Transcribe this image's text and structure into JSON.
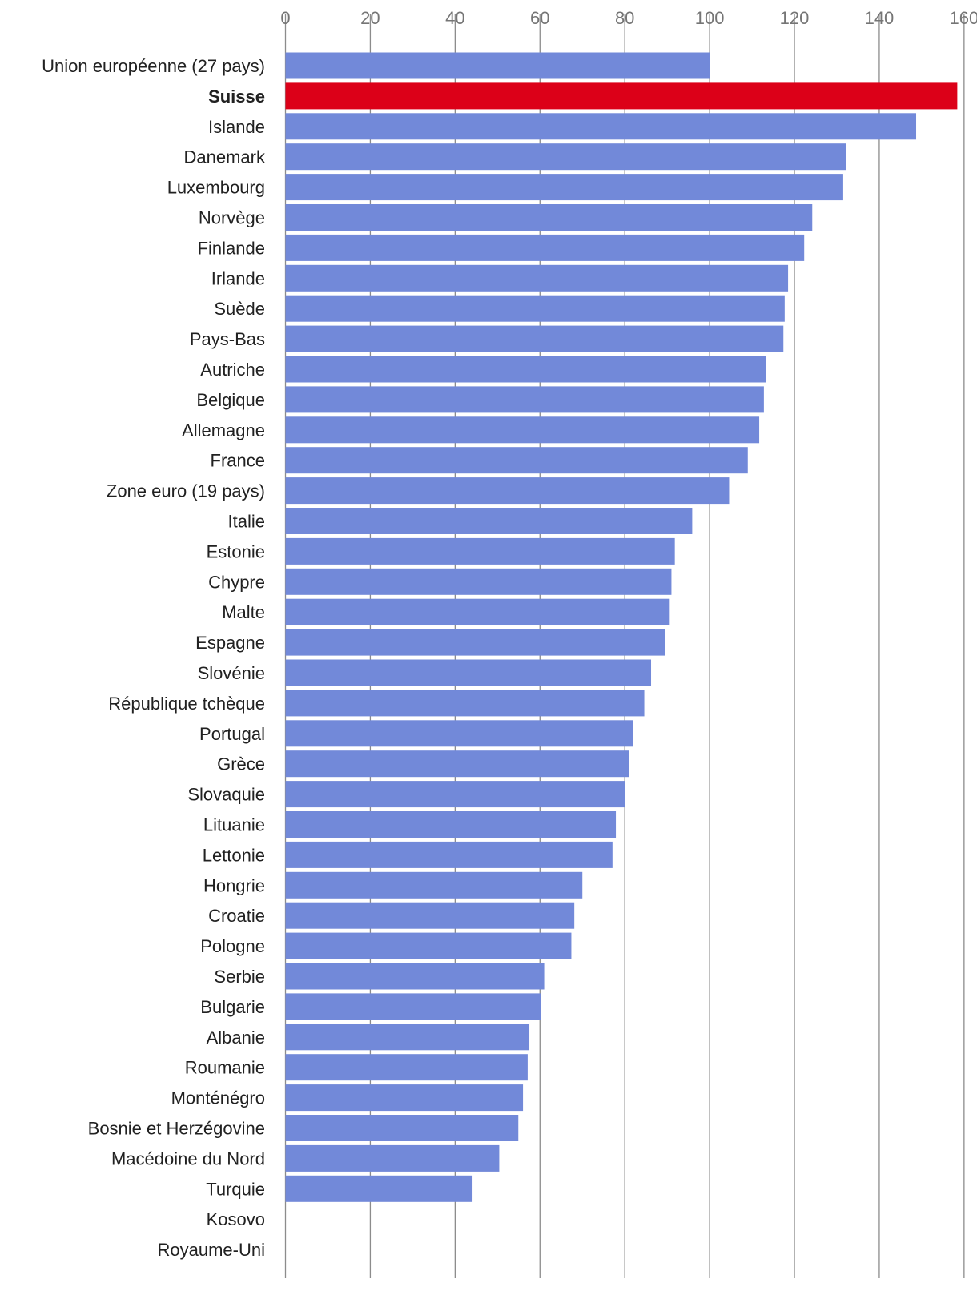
{
  "chart_data": {
    "type": "bar",
    "orientation": "horizontal",
    "title": "",
    "xlabel": "",
    "ylabel": "",
    "xlim": [
      0,
      160
    ],
    "ticks": [
      0,
      20,
      40,
      60,
      80,
      100,
      120,
      140,
      160
    ],
    "tick_labels": [
      "0",
      "20",
      "40",
      "60",
      "80",
      "100",
      "120",
      "140",
      "160"
    ],
    "grid": true,
    "legend": "none",
    "colors": {
      "default_bar": "#7289d9",
      "highlight_bar": "#dc0018",
      "grid": "#8c8c8c",
      "tick_label": "#757575",
      "category_label": "#212121"
    },
    "highlight": "Suisse",
    "categories": [
      "Union européenne (27 pays)",
      "Suisse",
      "Islande",
      "Danemark",
      "Luxembourg",
      "Norvège",
      "Finlande",
      "Irlande",
      "Suède",
      "Pays-Bas",
      "Autriche",
      "Belgique",
      "Allemagne",
      "France",
      "Zone euro (19 pays)",
      "Italie",
      "Estonie",
      "Chypre",
      "Malte",
      "Espagne",
      "Slovénie",
      "République tchèque",
      "Portugal",
      "Grèce",
      "Slovaquie",
      "Lituanie",
      "Lettonie",
      "Hongrie",
      "Croatie",
      "Pologne",
      "Serbie",
      "Bulgarie",
      "Albanie",
      "Roumanie",
      "Monténégro",
      "Bosnie et Herzégovine",
      "Macédoine du Nord",
      "Turquie",
      "Kosovo",
      "Royaume-Uni"
    ],
    "values": [
      100,
      158.4,
      148.7,
      132.2,
      131.5,
      124.2,
      122.3,
      118.5,
      117.7,
      117.4,
      113.2,
      112.8,
      111.7,
      109.0,
      104.6,
      95.9,
      91.8,
      91.0,
      90.6,
      89.5,
      86.2,
      84.6,
      82.0,
      81.0,
      80.0,
      77.9,
      77.1,
      70.0,
      68.1,
      67.4,
      61.0,
      60.2,
      57.5,
      57.1,
      56.0,
      54.9,
      50.4,
      44.1,
      null,
      null
    ]
  }
}
